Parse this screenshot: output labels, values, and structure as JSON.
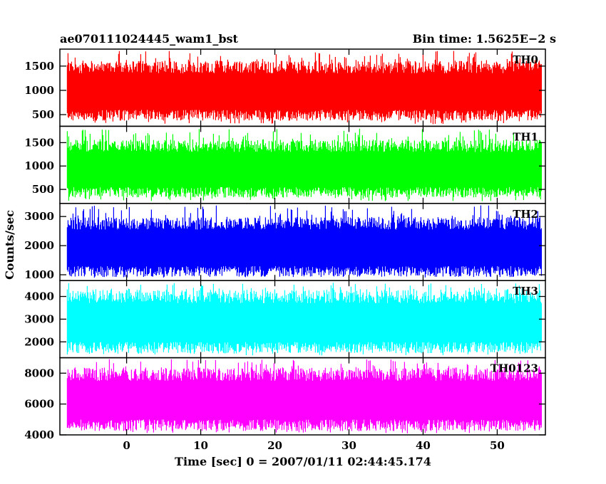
{
  "header": {
    "title": "ae070111024445_wam1_bst",
    "bin_time": "Bin time: 1.5625E−2 s"
  },
  "chart_data": {
    "type": "line",
    "title": "ae070111024445_wam1_bst",
    "xlabel": "Time [sec] 0 = 2007/01/11 02:44:45.174",
    "ylabel": "Counts/sec",
    "xlim": [
      -9,
      56.5
    ],
    "data_xrange": [
      -8,
      56
    ],
    "x_ticks": [
      0,
      10,
      20,
      30,
      40,
      50
    ],
    "x_tick_labels": [
      "0",
      "10",
      "20",
      "30",
      "40",
      "50"
    ],
    "grid": false,
    "panels": [
      {
        "name": "TH0",
        "color": "#ff0000",
        "ylim": [
          260,
          1850
        ],
        "y_ticks": [
          500,
          1000,
          1500
        ],
        "y_tick_labels": [
          "500",
          "1000",
          "1500"
        ],
        "band": [
          600,
          1350
        ],
        "peak_max": 1820,
        "trough_min": 300
      },
      {
        "name": "TH1",
        "color": "#00ff00",
        "ylim": [
          200,
          1850
        ],
        "y_ticks": [
          500,
          1000,
          1500
        ],
        "y_tick_labels": [
          "500",
          "1000",
          "1500"
        ],
        "band": [
          550,
          1300
        ],
        "peak_max": 1800,
        "trough_min": 250
      },
      {
        "name": "TH2",
        "color": "#0000ff",
        "ylim": [
          800,
          3450
        ],
        "y_ticks": [
          1000,
          2000,
          3000
        ],
        "y_tick_labels": [
          "1000",
          "2000",
          "3000"
        ],
        "band": [
          1300,
          2550
        ],
        "peak_max": 3400,
        "trough_min": 900
      },
      {
        "name": "TH3",
        "color": "#00ffff",
        "ylim": [
          1300,
          4700
        ],
        "y_ticks": [
          2000,
          3000,
          4000
        ],
        "y_tick_labels": [
          "2000",
          "3000",
          "4000"
        ],
        "band": [
          2000,
          3700
        ],
        "peak_max": 4600,
        "trough_min": 1400
      },
      {
        "name": "TH0123",
        "color": "#ff00ff",
        "ylim": [
          4000,
          9000
        ],
        "y_ticks": [
          4000,
          6000,
          8000
        ],
        "y_tick_labels": [
          "4000",
          "6000",
          "8000"
        ],
        "band": [
          5000,
          7500
        ],
        "peak_max": 8900,
        "trough_min": 4100
      }
    ]
  }
}
